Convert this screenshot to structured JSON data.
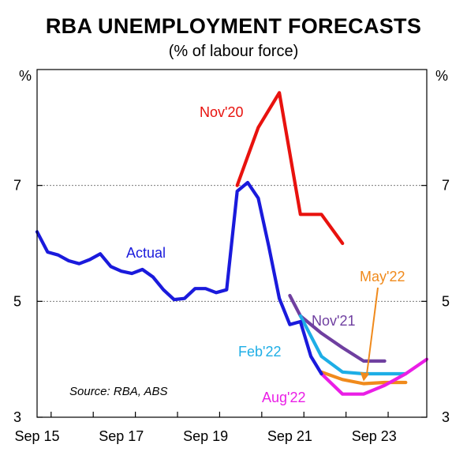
{
  "chart_data": {
    "type": "line",
    "title": "RBA UNEMPLOYMENT FORECASTS",
    "subtitle": "(% of labour force)",
    "y_unit_left": "%",
    "y_unit_right": "%",
    "ylim": [
      3,
      9
    ],
    "yticks": [
      3,
      5,
      7
    ],
    "gridlines_at": [
      5,
      7
    ],
    "x_ticks": [
      "Sep 15",
      "Sep 17",
      "Sep 19",
      "Sep 21",
      "Sep 23"
    ],
    "source": "Source: RBA, ABS",
    "series": [
      {
        "name": "Actual",
        "color": "#1a1adc",
        "points": [
          [
            "2015-09",
            6.2
          ],
          [
            "2015-12",
            5.85
          ],
          [
            "2016-03",
            5.8
          ],
          [
            "2016-06",
            5.7
          ],
          [
            "2016-09",
            5.65
          ],
          [
            "2016-12",
            5.72
          ],
          [
            "2017-03",
            5.82
          ],
          [
            "2017-06",
            5.6
          ],
          [
            "2017-09",
            5.52
          ],
          [
            "2017-12",
            5.48
          ],
          [
            "2018-03",
            5.55
          ],
          [
            "2018-06",
            5.42
          ],
          [
            "2018-09",
            5.2
          ],
          [
            "2018-12",
            5.03
          ],
          [
            "2019-03",
            5.05
          ],
          [
            "2019-06",
            5.22
          ],
          [
            "2019-09",
            5.22
          ],
          [
            "2019-12",
            5.15
          ],
          [
            "2020-03",
            5.2
          ],
          [
            "2020-06",
            6.9
          ],
          [
            "2020-09",
            7.05
          ],
          [
            "2020-12",
            6.78
          ],
          [
            "2021-03",
            5.95
          ],
          [
            "2021-06",
            5.05
          ],
          [
            "2021-09",
            4.6
          ],
          [
            "2021-12",
            4.65
          ],
          [
            "2022-03",
            4.05
          ],
          [
            "2022-06",
            3.75
          ]
        ]
      },
      {
        "name": "Nov'20",
        "color": "#e8120e",
        "points": [
          [
            "2020-06",
            7.0
          ],
          [
            "2020-09",
            7.5
          ],
          [
            "2020-12",
            8.0
          ],
          [
            "2021-06",
            8.6
          ],
          [
            "2021-12",
            6.5
          ],
          [
            "2022-06",
            6.5
          ],
          [
            "2022-12",
            6.0
          ]
        ]
      },
      {
        "name": "Nov'21",
        "color": "#6f3fa0",
        "points": [
          [
            "2021-09",
            5.1
          ],
          [
            "2021-12",
            4.75
          ],
          [
            "2022-06",
            4.45
          ],
          [
            "2022-12",
            4.2
          ],
          [
            "2023-06",
            3.97
          ],
          [
            "2023-12",
            3.97
          ]
        ]
      },
      {
        "name": "Feb'22",
        "color": "#1eaee6",
        "points": [
          [
            "2021-12",
            4.75
          ],
          [
            "2022-06",
            4.05
          ],
          [
            "2022-12",
            3.78
          ],
          [
            "2023-06",
            3.75
          ],
          [
            "2023-12",
            3.75
          ],
          [
            "2024-06",
            3.75
          ]
        ]
      },
      {
        "name": "May'22",
        "color": "#f08a1c",
        "points": [
          [
            "2022-06",
            3.78
          ],
          [
            "2022-12",
            3.65
          ],
          [
            "2023-06",
            3.58
          ],
          [
            "2023-12",
            3.6
          ],
          [
            "2024-06",
            3.6
          ]
        ]
      },
      {
        "name": "Aug'22",
        "color": "#ea1ee6",
        "points": [
          [
            "2022-06",
            3.75
          ],
          [
            "2022-12",
            3.4
          ],
          [
            "2023-06",
            3.4
          ],
          [
            "2023-12",
            3.55
          ],
          [
            "2024-06",
            3.75
          ],
          [
            "2024-12",
            4.0
          ]
        ]
      }
    ],
    "annotations": [
      {
        "text": "Nov'20",
        "series": "Nov'20"
      },
      {
        "text": "Actual",
        "series": "Actual"
      },
      {
        "text": "Nov'21",
        "series": "Nov'21"
      },
      {
        "text": "Feb'22",
        "series": "Feb'22"
      },
      {
        "text": "May'22",
        "series": "May'22",
        "arrow": true
      },
      {
        "text": "Aug'22",
        "series": "Aug'22"
      }
    ]
  }
}
